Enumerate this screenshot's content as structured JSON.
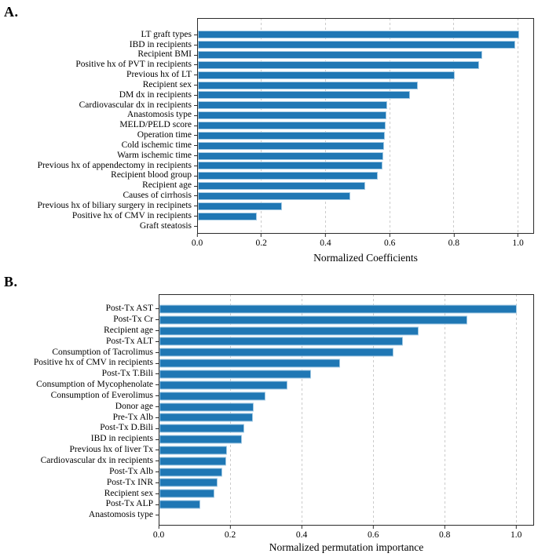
{
  "figure": {
    "background": "#ffffff",
    "panels": [
      {
        "letter": "A."
      },
      {
        "letter": "B."
      }
    ]
  },
  "style": {
    "bar_color": "#1f77b4",
    "bar_edge_color": "#a5cbe4",
    "grid_color": "#cbcbcb",
    "axis_color": "#2b2b2b",
    "text_color": "#000000"
  },
  "chart_data": [
    {
      "type": "bar",
      "orientation": "horizontal",
      "title": "",
      "xlabel": "Normalized Coefficients",
      "ylabel": "",
      "xlim": [
        0,
        1.05
      ],
      "xticks": [
        0,
        0.2,
        0.4,
        0.6,
        0.8,
        1.0
      ],
      "xtick_labels": [
        "0.0",
        "0.2",
        "0.4",
        "0.6",
        "0.8",
        "1.0"
      ],
      "grid": "vertical-dashed",
      "legend": "none",
      "categories": [
        "LT graft types",
        "IBD in recipients",
        "Recipient BMI",
        "Positive hx of PVT in recipients",
        "Previous hx of LT",
        "Recipient sex",
        "DM dx in recipients",
        "Cardiovascular dx in recipients",
        "Anastomosis type",
        "MELD/PELD score",
        "Operation time",
        "Cold ischemic time",
        "Warm ischemic time",
        "Previous hx of appendectomy in recipients",
        "Recipient blood group",
        "Recipient age",
        "Causes of cirrhosis",
        "Previous hx of biliary surgery in recipinets",
        "Positive hx of CMV in recipients",
        "Graft steatosis"
      ],
      "values": [
        1.0,
        0.99,
        0.885,
        0.875,
        0.8,
        0.685,
        0.66,
        0.591,
        0.588,
        0.584,
        0.582,
        0.58,
        0.578,
        0.574,
        0.56,
        0.521,
        0.474,
        0.262,
        0.184,
        0.0
      ]
    },
    {
      "type": "bar",
      "orientation": "horizontal",
      "title": "",
      "xlabel": "Normalized permutation importance",
      "ylabel": "",
      "xlim": [
        0,
        1.05
      ],
      "xticks": [
        0,
        0.2,
        0.4,
        0.6,
        0.8,
        1.0
      ],
      "xtick_labels": [
        "0.0",
        "0.2",
        "0.4",
        "0.6",
        "0.8",
        "1.0"
      ],
      "grid": "vertical-dashed",
      "legend": "none",
      "categories": [
        "Post-Tx AST",
        "Post-Tx Cr",
        "Recipient age",
        "Post-Tx ALT",
        "Consumption of Tacrolimus",
        "Positive hx of CMV in recipients",
        "Post-Tx T.Bili",
        "Consumption of Mycophenolate",
        "Consumption of Everolimus",
        "Donor age",
        "Pre-Tx Alb",
        "Post-Tx D.Bili",
        "IBD in recipients",
        "Previous hx of liver Tx",
        "Cardiovascular dx in recipients",
        "Post-Tx Alb",
        "Post-Tx INR",
        "Recipient sex",
        "Post-Tx ALP",
        "Anastomosis type"
      ],
      "values": [
        1.0,
        0.86,
        0.725,
        0.68,
        0.655,
        0.505,
        0.423,
        0.358,
        0.297,
        0.264,
        0.262,
        0.237,
        0.231,
        0.188,
        0.186,
        0.175,
        0.163,
        0.153,
        0.115,
        0.0
      ]
    }
  ]
}
